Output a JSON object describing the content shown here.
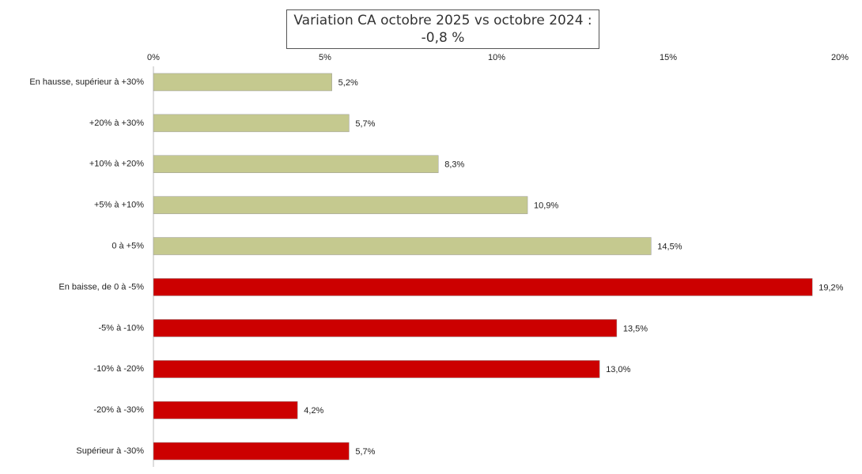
{
  "chart_data": {
    "type": "bar",
    "orientation": "horizontal",
    "title": "Variation CA octobre 2025 vs octobre 2024 : -0,8 %",
    "categories": [
      "En hausse, supérieur à +30%",
      "+20% à +30%",
      "+10% à +20%",
      "+5% à +10%",
      "0 à +5%",
      "En baisse, de 0 à -5%",
      "-5% à -10%",
      "-10% à -20%",
      "-20% à -30%",
      "Supérieur à -30%"
    ],
    "values": [
      5.2,
      5.7,
      8.3,
      10.9,
      14.5,
      19.2,
      13.5,
      13.0,
      4.2,
      5.7
    ],
    "value_labels": [
      "5,2%",
      "5,7%",
      "8,3%",
      "10,9%",
      "14,5%",
      "19,2%",
      "13,5%",
      "13,0%",
      "4,2%",
      "5,7%"
    ],
    "colors": [
      "#c5c98f",
      "#c5c98f",
      "#c5c98f",
      "#c5c98f",
      "#c5c98f",
      "#cc0000",
      "#cc0000",
      "#cc0000",
      "#cc0000",
      "#cc0000"
    ],
    "xlim": [
      0,
      20
    ],
    "xticks": [
      {
        "value": 0,
        "label": "0%"
      },
      {
        "value": 5,
        "label": "5%"
      },
      {
        "value": 10,
        "label": "10%"
      },
      {
        "value": 15,
        "label": "15%"
      },
      {
        "value": 20,
        "label": "20%"
      }
    ],
    "grid": false
  }
}
